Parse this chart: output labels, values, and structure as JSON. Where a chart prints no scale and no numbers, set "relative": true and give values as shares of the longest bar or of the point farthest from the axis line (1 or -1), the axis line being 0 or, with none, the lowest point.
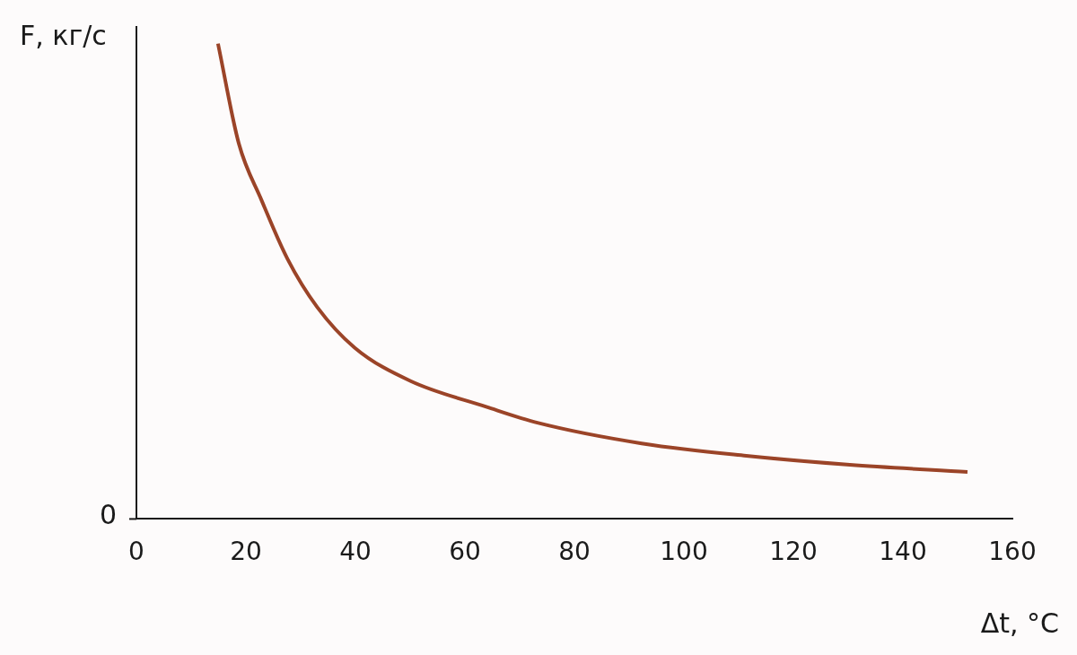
{
  "chart_data": {
    "type": "line",
    "relative": true,
    "ylabel": "F, кг/с",
    "xlabel": "Δt, °С",
    "xlim": [
      0,
      160
    ],
    "xticks": [
      0,
      20,
      40,
      60,
      80,
      100,
      120,
      140,
      160
    ],
    "annotations": [
      "0"
    ],
    "series": [
      {
        "color": "#9b4428",
        "x": [
          14.9,
          18.7,
          22.8,
          27.6,
          33.0,
          39.9,
          50.1,
          63.9,
          73.4,
          92.3,
          111.4,
          130.3,
          151.8
        ],
        "values": [
          1,
          0.79,
          0.672,
          0.547,
          0.446,
          0.36,
          0.29,
          0.236,
          0.202,
          0.159,
          0.133,
          0.114,
          0.099
        ]
      }
    ],
    "grid": false,
    "legend": false,
    "marker": "none",
    "line_style": "solid"
  }
}
